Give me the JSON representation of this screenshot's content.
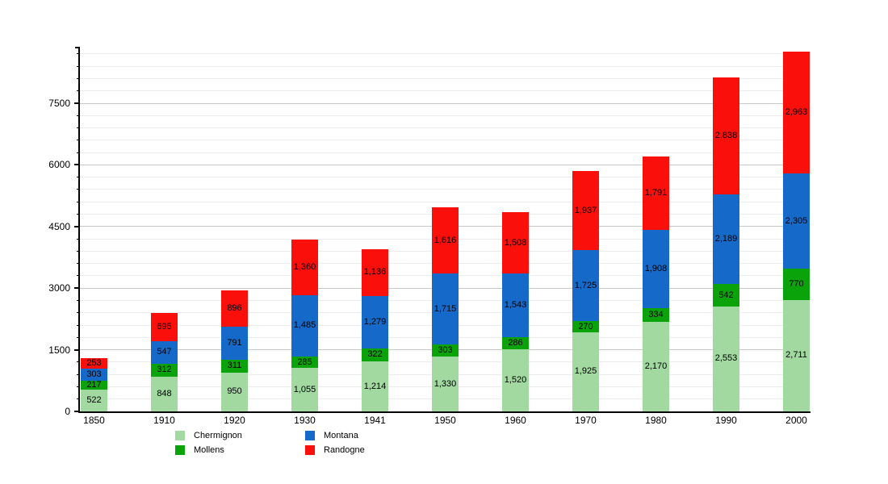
{
  "chart_data": {
    "type": "bar",
    "stacked": true,
    "title": "",
    "xlabel": "",
    "ylabel": "",
    "categories": [
      "1850",
      "1910",
      "1920",
      "1930",
      "1941",
      "1950",
      "1960",
      "1970",
      "1980",
      "1990",
      "2000"
    ],
    "series": [
      {
        "name": "Chermignon",
        "color": "#a1d9a1",
        "values": [
          522,
          848,
          950,
          1055,
          1214,
          1330,
          1520,
          1925,
          2170,
          2553,
          2711
        ]
      },
      {
        "name": "Mollens",
        "color": "#0aa30a",
        "values": [
          217,
          312,
          311,
          285,
          322,
          303,
          286,
          270,
          334,
          542,
          770
        ]
      },
      {
        "name": "Montana",
        "color": "#1569c8",
        "values": [
          303,
          547,
          791,
          1485,
          1279,
          1715,
          1543,
          1725,
          1908,
          2189,
          2305
        ]
      },
      {
        "name": "Randogne",
        "color": "#fa0f0a",
        "values": [
          253,
          695,
          896,
          1360,
          1136,
          1616,
          1508,
          1937,
          1791,
          2838,
          2963
        ]
      }
    ],
    "totals": [
      1295,
      2402,
      2948,
      4185,
      3951,
      4964,
      4857,
      5857,
      6203,
      8122,
      8749
    ],
    "ylim": [
      0,
      8836
    ],
    "y_major_ticks": [
      0,
      1500,
      3000,
      4500,
      6000,
      7500
    ],
    "y_major_tick_labels": [
      "0",
      "1500",
      "3000",
      "4500",
      "6000",
      "7500"
    ],
    "y_minor_step": 300,
    "grid": true,
    "value_labels_inside_segments": true,
    "legend_position": "bottom",
    "legend": [
      {
        "label": "Chermignon",
        "color": "#a1d9a1",
        "column": 0,
        "row": 0
      },
      {
        "label": "Mollens",
        "color": "#0aa30a",
        "column": 0,
        "row": 1
      },
      {
        "label": "Montana",
        "color": "#1569c8",
        "column": 1,
        "row": 0
      },
      {
        "label": "Randogne",
        "color": "#fa0f0a",
        "column": 1,
        "row": 1
      }
    ],
    "axis_color": "#000000",
    "grid_major_color": "#c9c9c9",
    "grid_minor_color": "#ececec",
    "background_color": "#ffffff"
  }
}
